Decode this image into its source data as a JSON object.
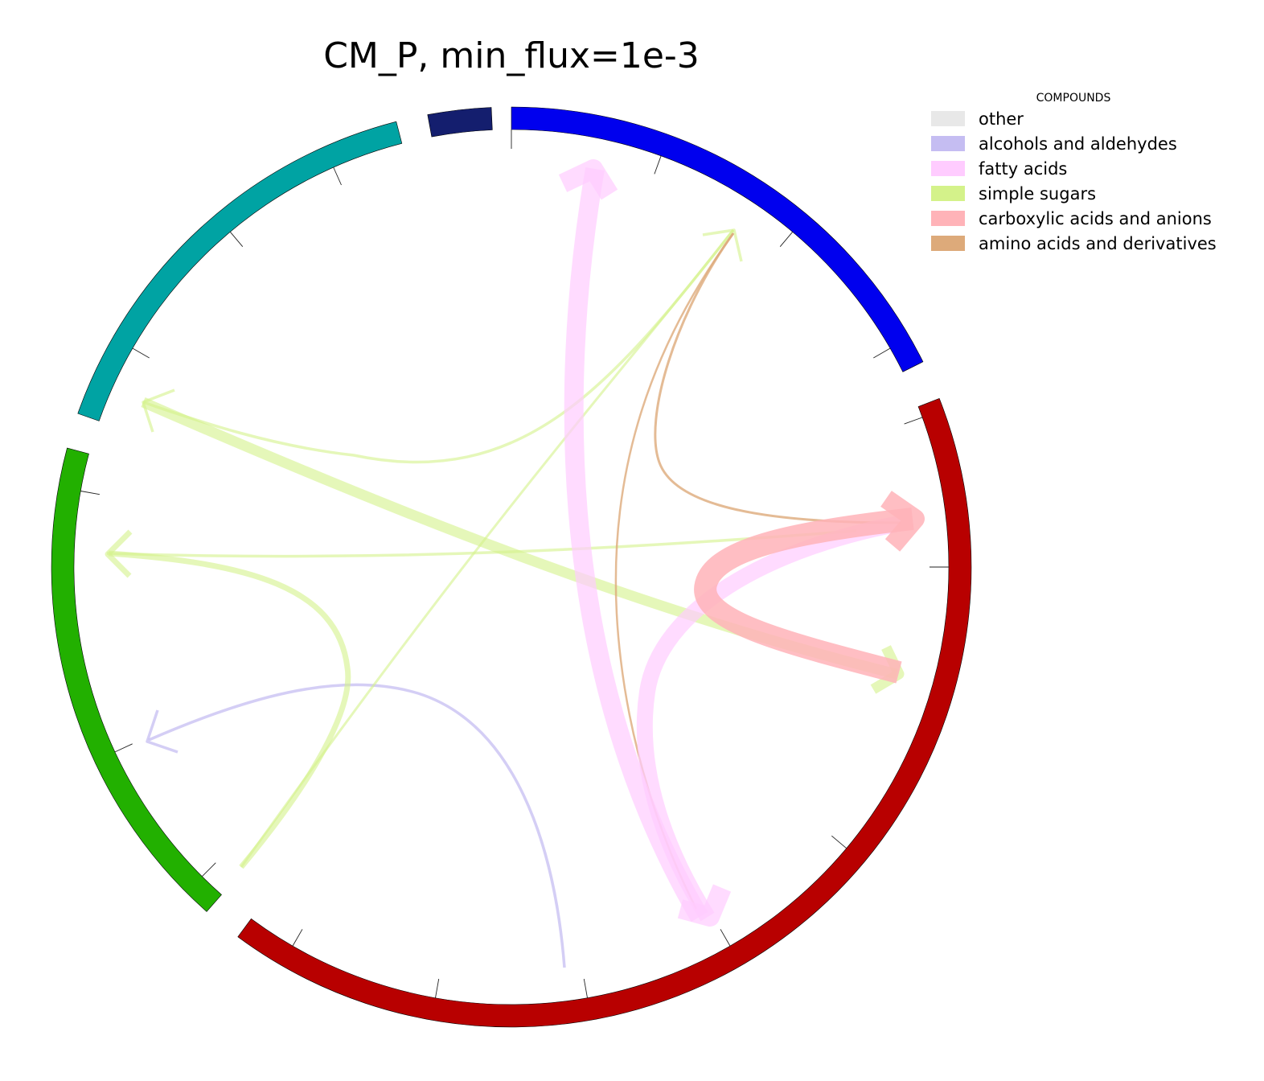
{
  "title": "CM_P, min_flux=1e-3",
  "legend": {
    "title": "COMPOUNDS",
    "items": [
      {
        "label": "other",
        "color": "#e8e8e8"
      },
      {
        "label": "alcohols and aldehydes",
        "color": "#c5bdf2"
      },
      {
        "label": "fatty acids",
        "color": "#ffccff"
      },
      {
        "label": "simple sugars",
        "color": "#d4f28a"
      },
      {
        "label": "carboxylic acids and anions",
        "color": "#ffb3b8"
      },
      {
        "label": "amino acids and derivatives",
        "color": "#ddaa7a"
      }
    ]
  },
  "chart_data": {
    "type": "chord",
    "sectors": [
      {
        "color": "#0000ee"
      },
      {
        "color": "#b80000"
      },
      {
        "color": "#22b000"
      },
      {
        "color": "#00a3a3"
      },
      {
        "color": "#141e6e"
      }
    ],
    "flows": [
      {
        "compound": "fatty acids",
        "from_sector": 1,
        "to_sector": 0,
        "weight": 5
      },
      {
        "compound": "fatty acids",
        "from_sector": 0,
        "to_sector": 1,
        "weight": 5
      },
      {
        "compound": "fatty acids",
        "from_sector": 1,
        "to_sector": 1,
        "weight": 4
      },
      {
        "compound": "carboxylic acids and anions",
        "from_sector": 1,
        "to_sector": 1,
        "weight": 5
      },
      {
        "compound": "simple sugars",
        "from_sector": 3,
        "to_sector": 1,
        "weight": 3
      },
      {
        "compound": "simple sugars",
        "from_sector": 0,
        "to_sector": 3,
        "weight": 1
      },
      {
        "compound": "simple sugars",
        "from_sector": 1,
        "to_sector": 3,
        "weight": 1
      },
      {
        "compound": "simple sugars",
        "from_sector": 2,
        "to_sector": 3,
        "weight": 2
      },
      {
        "compound": "simple sugars",
        "from_sector": 2,
        "to_sector": 0,
        "weight": 1
      },
      {
        "compound": "amino acids and derivatives",
        "from_sector": 1,
        "to_sector": 0,
        "weight": 1
      },
      {
        "compound": "amino acids and derivatives",
        "from_sector": 0,
        "to_sector": 1,
        "weight": 1
      },
      {
        "compound": "alcohols and aldehydes",
        "from_sector": 1,
        "to_sector": 2,
        "weight": 1
      }
    ]
  }
}
